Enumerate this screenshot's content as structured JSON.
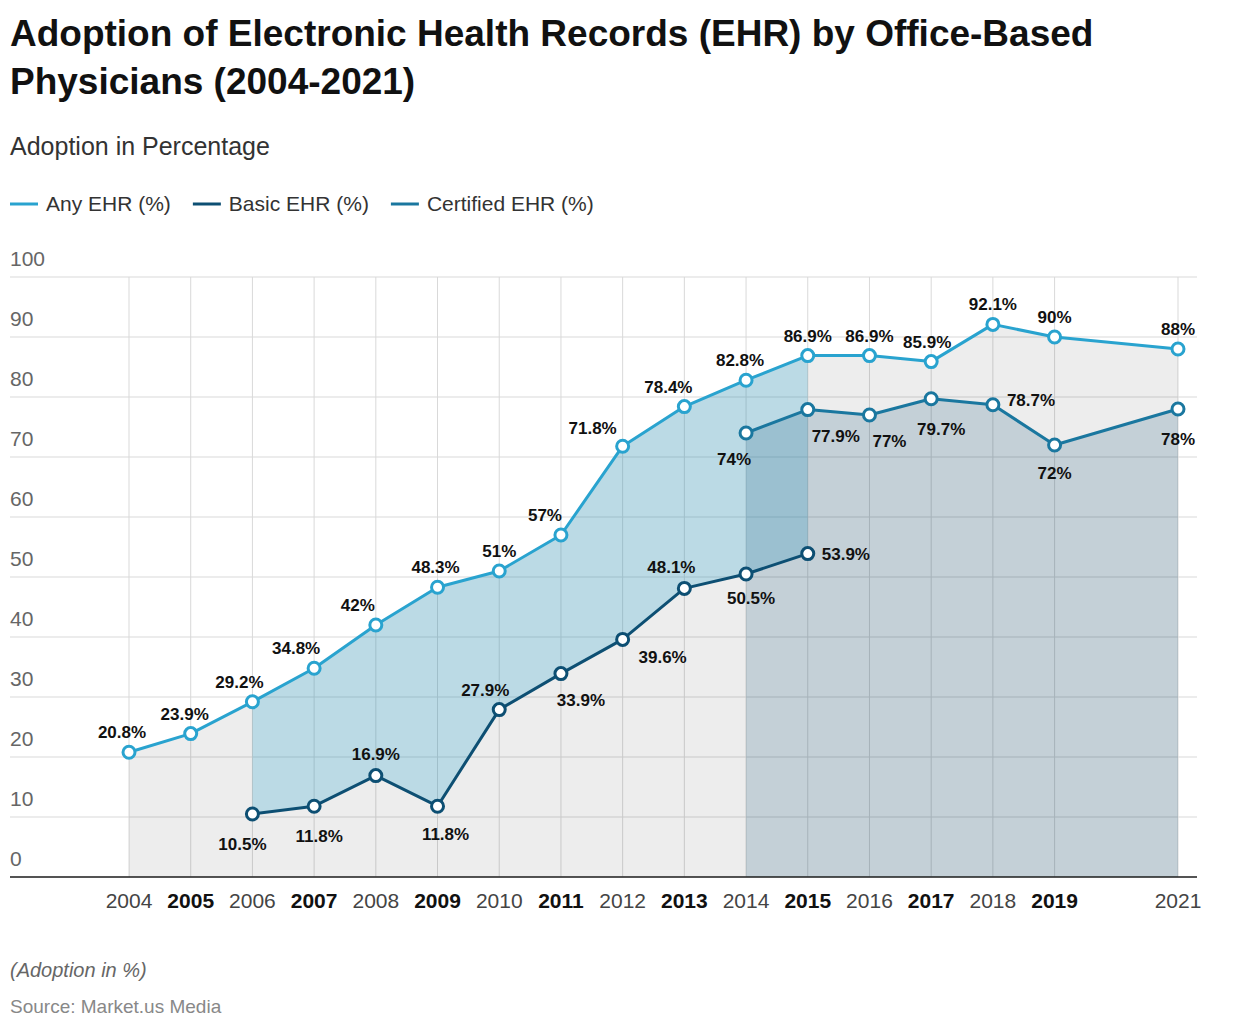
{
  "chart_data": {
    "type": "line",
    "title": "Adoption of Electronic Health Records (EHR) by Office-Based Physicians (2004-2021)",
    "subtitle": "Adoption in Percentage",
    "caption": "(Adoption in %)",
    "source": "Source: Market.us Media",
    "x": [
      2004,
      2005,
      2006,
      2007,
      2008,
      2009,
      2010,
      2011,
      2012,
      2013,
      2014,
      2015,
      2016,
      2017,
      2018,
      2019,
      2021
    ],
    "xlim": [
      2004,
      2021
    ],
    "xticks": [
      2004,
      2005,
      2006,
      2007,
      2008,
      2009,
      2010,
      2011,
      2012,
      2013,
      2014,
      2015,
      2016,
      2017,
      2018,
      2019,
      2021
    ],
    "ylim": [
      0,
      100
    ],
    "yticks": [
      0,
      10,
      20,
      30,
      40,
      50,
      60,
      70,
      80,
      90,
      100
    ],
    "grid": true,
    "legend": "top-left",
    "data_labels": true,
    "marker": "circle",
    "series": [
      {
        "name": "Any EHR (%)",
        "color": "#29a3cf",
        "values": [
          20.8,
          23.9,
          29.2,
          34.8,
          42,
          48.3,
          51,
          57,
          71.8,
          78.4,
          82.8,
          86.9,
          86.9,
          85.9,
          92.1,
          90,
          88
        ],
        "value_labels": [
          "20.8%",
          "23.9%",
          "29.2%",
          "34.8%",
          "42%",
          "48.3%",
          "51%",
          "57%",
          "71.8%",
          "78.4%",
          "82.8%",
          "86.9%",
          "86.9%",
          "85.9%",
          "92.1%",
          "90%",
          "88%"
        ]
      },
      {
        "name": "Basic EHR (%)",
        "color": "#0d4f73",
        "values": [
          null,
          null,
          10.5,
          11.8,
          16.9,
          11.8,
          27.9,
          33.9,
          39.6,
          48.1,
          50.5,
          53.9,
          null,
          null,
          null,
          null,
          null
        ],
        "value_labels": [
          null,
          null,
          "10.5%",
          "11.8%",
          "16.9%",
          "11.8%",
          "27.9%",
          "33.9%",
          "39.6%",
          "48.1%",
          "50.5%",
          "53.9%",
          null,
          null,
          null,
          null,
          null
        ]
      },
      {
        "name": "Certified EHR (%)",
        "color": "#1a779f",
        "values": [
          null,
          null,
          null,
          null,
          null,
          null,
          null,
          null,
          null,
          null,
          74,
          77.9,
          77,
          79.7,
          78.7,
          72,
          78
        ],
        "value_labels": [
          null,
          null,
          null,
          null,
          null,
          null,
          null,
          null,
          null,
          null,
          "74%",
          "77.9%",
          "77%",
          "79.7%",
          "78.7%",
          "72%",
          "78%"
        ]
      }
    ]
  }
}
